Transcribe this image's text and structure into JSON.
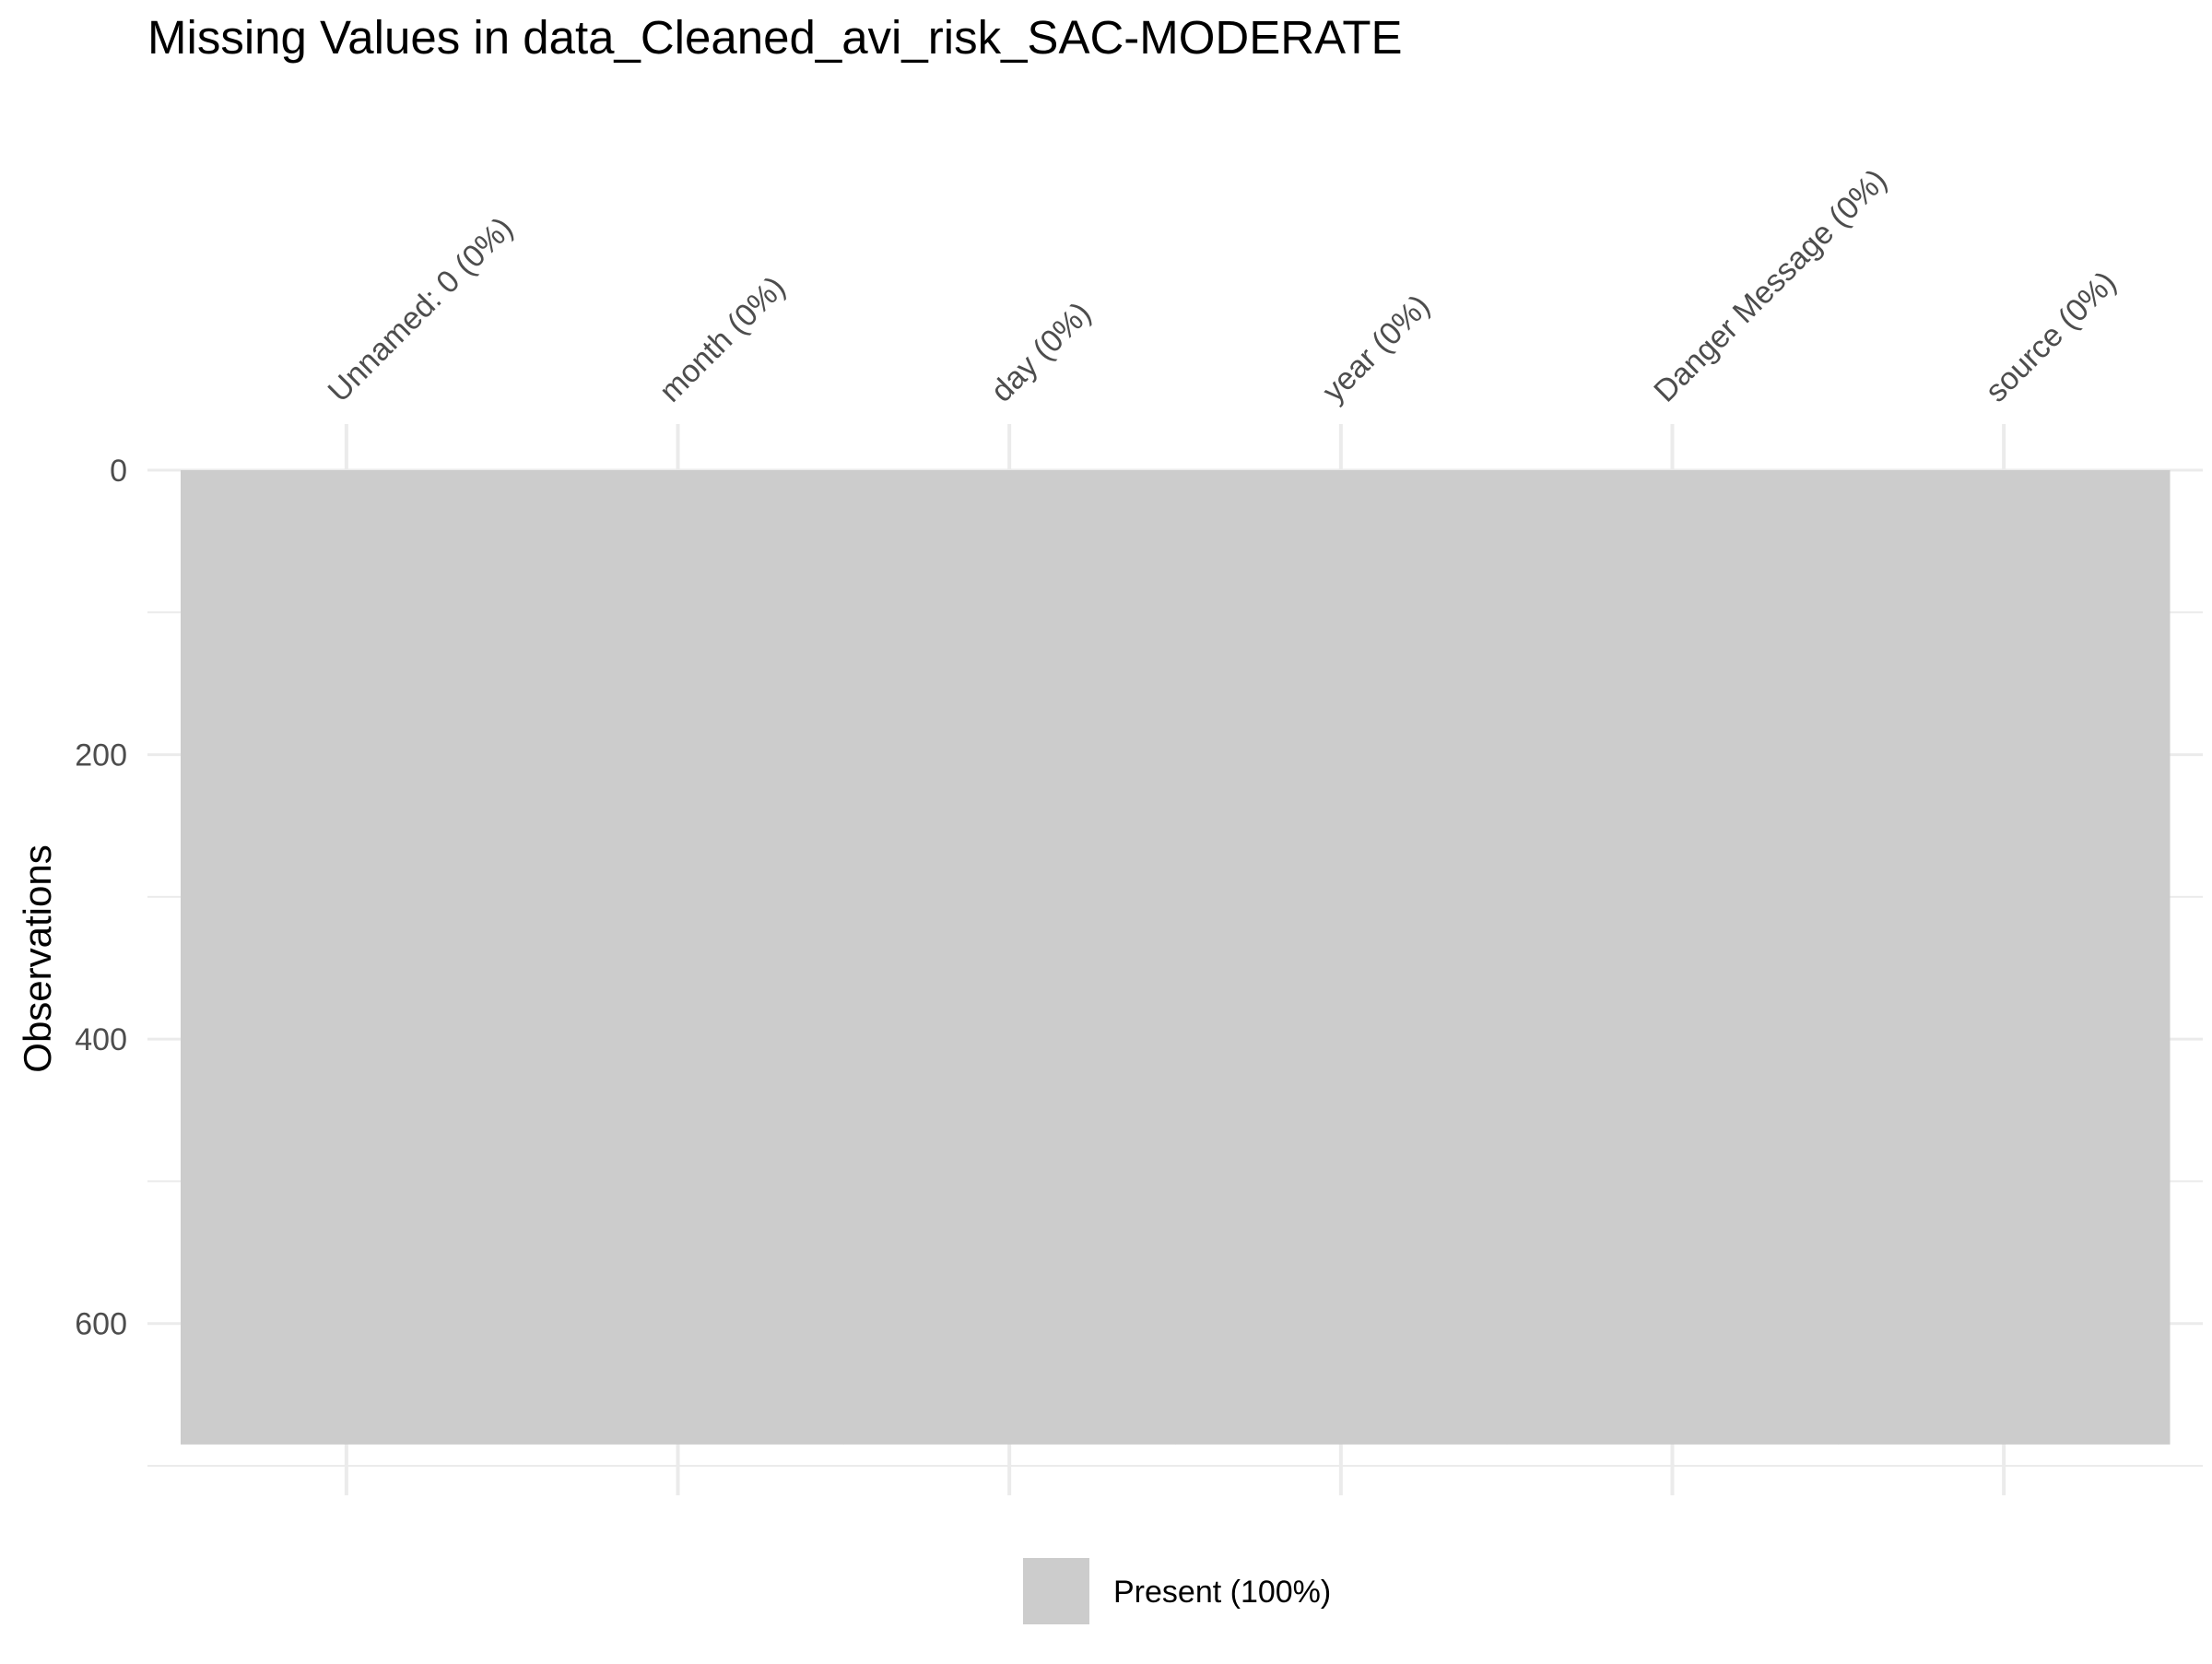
{
  "chart_data": {
    "type": "heatmap",
    "title": "Missing Values in data_Cleaned_avi_risk_SAC-MODERATE",
    "ylabel": "Observations",
    "xlabel": "",
    "columns": [
      "Unnamed: 0 (0%)",
      "month (0%)",
      "day (0%)",
      "year (0%)",
      "Danger Message (0%)",
      "source (0%)"
    ],
    "y_ticks": [
      0,
      200,
      400,
      600
    ],
    "ylim": [
      0,
      700
    ],
    "n_observations": 685,
    "y_reversed": true,
    "x_axis_position": "top",
    "grid": true,
    "legend": {
      "position": "bottom",
      "entries": [
        {
          "label": "Present (100%)",
          "color": "#cccccc"
        }
      ]
    },
    "colors": {
      "present": "#cccccc",
      "grid": "#ebebeb",
      "text_dark": "#000000",
      "text_axis": "#4d4d4d"
    }
  }
}
